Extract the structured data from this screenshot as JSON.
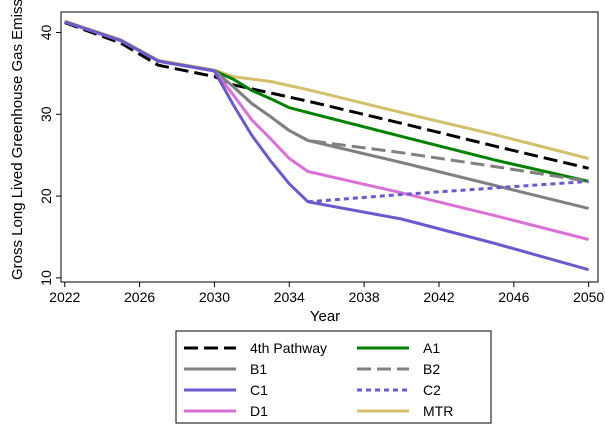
{
  "chart_data": {
    "type": "line",
    "xlabel": "Year",
    "ylabel": "Gross Long Lived Greenhouse Gas Emissions",
    "xlim": [
      2022,
      2050
    ],
    "ylim": [
      9.5,
      42.5
    ],
    "xticks": [
      2022,
      2026,
      2030,
      2034,
      2038,
      2042,
      2046,
      2050
    ],
    "yticks": [
      10,
      20,
      30,
      40
    ],
    "grid": false,
    "legend_position": "bottom",
    "legend_columns": 2,
    "series": [
      {
        "name": "4th Pathway",
        "color": "#000000",
        "dash": "long-dash",
        "points": [
          [
            2022,
            41.2
          ],
          [
            2025,
            38.7
          ],
          [
            2027,
            36.0
          ],
          [
            2030,
            34.6
          ],
          [
            2031,
            33.6
          ],
          [
            2032,
            33.1
          ],
          [
            2033,
            32.6
          ],
          [
            2035,
            31.6
          ],
          [
            2040,
            28.9
          ],
          [
            2045,
            26.1
          ],
          [
            2050,
            23.4
          ]
        ]
      },
      {
        "name": "A1",
        "color": "#008000",
        "dash": "solid",
        "points": [
          [
            2022,
            41.3
          ],
          [
            2025,
            39.0
          ],
          [
            2027,
            36.5
          ],
          [
            2030,
            35.3
          ],
          [
            2031,
            34.3
          ],
          [
            2032,
            32.9
          ],
          [
            2033,
            31.9
          ],
          [
            2034,
            30.8
          ],
          [
            2035,
            30.2
          ],
          [
            2040,
            27.3
          ],
          [
            2045,
            24.4
          ],
          [
            2050,
            21.8
          ]
        ]
      },
      {
        "name": "B1",
        "color": "#808080",
        "dash": "solid",
        "points": [
          [
            2022,
            41.3
          ],
          [
            2025,
            39.0
          ],
          [
            2027,
            36.5
          ],
          [
            2030,
            35.3
          ],
          [
            2031,
            33.4
          ],
          [
            2032,
            31.3
          ],
          [
            2033,
            29.7
          ],
          [
            2034,
            28.0
          ],
          [
            2035,
            26.8
          ],
          [
            2040,
            24.1
          ],
          [
            2045,
            21.3
          ],
          [
            2050,
            18.5
          ]
        ]
      },
      {
        "name": "B2",
        "color": "#808080",
        "dash": "long-dash",
        "points": [
          [
            2022,
            41.3
          ],
          [
            2025,
            39.0
          ],
          [
            2027,
            36.5
          ],
          [
            2030,
            35.3
          ],
          [
            2031,
            33.4
          ],
          [
            2032,
            31.3
          ],
          [
            2033,
            29.7
          ],
          [
            2034,
            28.0
          ],
          [
            2035,
            26.8
          ],
          [
            2040,
            25.3
          ],
          [
            2045,
            23.6
          ],
          [
            2050,
            21.8
          ]
        ]
      },
      {
        "name": "C1",
        "color": "#6a5acd",
        "dash": "solid",
        "points": [
          [
            2022,
            41.3
          ],
          [
            2025,
            39.0
          ],
          [
            2027,
            36.5
          ],
          [
            2030,
            35.3
          ],
          [
            2031,
            31.2
          ],
          [
            2032,
            27.4
          ],
          [
            2033,
            24.3
          ],
          [
            2034,
            21.5
          ],
          [
            2035,
            19.3
          ],
          [
            2040,
            17.2
          ],
          [
            2045,
            14.2
          ],
          [
            2050,
            11.0
          ]
        ]
      },
      {
        "name": "C2",
        "color": "#6a5acd",
        "dash": "short-dash",
        "points": [
          [
            2035,
            19.3
          ],
          [
            2040,
            20.2
          ],
          [
            2045,
            21.0
          ],
          [
            2050,
            21.8
          ]
        ]
      },
      {
        "name": "D1",
        "color": "#da70d6",
        "dash": "solid",
        "points": [
          [
            2022,
            41.3
          ],
          [
            2025,
            39.0
          ],
          [
            2027,
            36.5
          ],
          [
            2030,
            35.3
          ],
          [
            2031,
            32.4
          ],
          [
            2032,
            29.3
          ],
          [
            2033,
            27.0
          ],
          [
            2034,
            24.6
          ],
          [
            2035,
            23.0
          ],
          [
            2040,
            20.4
          ],
          [
            2045,
            17.6
          ],
          [
            2050,
            14.7
          ]
        ]
      },
      {
        "name": "MTR",
        "color": "#d4c06a",
        "dash": "solid",
        "points": [
          [
            2022,
            41.4
          ],
          [
            2025,
            39.1
          ],
          [
            2027,
            36.6
          ],
          [
            2030,
            35.4
          ],
          [
            2031,
            34.6
          ],
          [
            2032,
            34.3
          ],
          [
            2033,
            34.0
          ],
          [
            2035,
            33.0
          ],
          [
            2040,
            30.2
          ],
          [
            2045,
            27.5
          ],
          [
            2050,
            24.6
          ]
        ]
      }
    ]
  }
}
